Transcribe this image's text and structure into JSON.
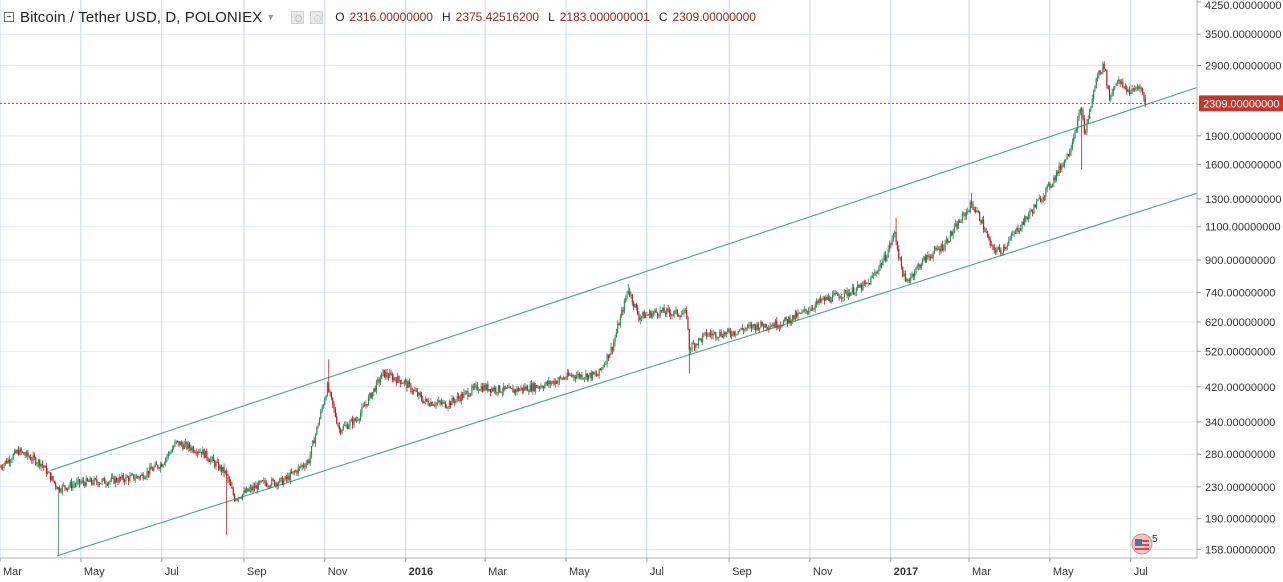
{
  "legend": {
    "symbol": "Bitcoin / Tether USD, D, POLONIEX",
    "o_label": "O",
    "o_value": "2316.00000000",
    "h_label": "H",
    "h_value": "2375.42516200",
    "l_label": "L",
    "l_value": "2183.000000001",
    "c_label": "C",
    "c_value": "2309.00000000"
  },
  "last_price_label": "2309.00000000",
  "badge_count": "5",
  "colors": {
    "up": "#2e8b57",
    "down": "#b22222",
    "channel": "#4aa58a",
    "grid": "#c8d7ec",
    "last_price": "#c0392b"
  },
  "chart_data": {
    "type": "candlestick",
    "title": "Bitcoin / Tether USD, D, POLONIEX",
    "scale": "log",
    "y_ticks": [
      "4250.00000000",
      "3500.00000000",
      "2900.00000000",
      "1900.00000000",
      "1600.00000000",
      "1300.00000000",
      "1100.00000000",
      "900.00000000",
      "740.00000000",
      "620.00000000",
      "520.00000000",
      "420.00000000",
      "340.00000000",
      "280.00000000",
      "230.00000000",
      "190.00000000",
      "158.00000000"
    ],
    "y_tick_values": [
      4250,
      3500,
      2900,
      1900,
      1600,
      1300,
      1100,
      900,
      740,
      620,
      520,
      420,
      340,
      280,
      230,
      190,
      158
    ],
    "x_ticks": [
      {
        "label": "Mar",
        "date": "2015-03-01",
        "bold": false
      },
      {
        "label": "May",
        "date": "2015-05-01",
        "bold": false
      },
      {
        "label": "Jul",
        "date": "2015-07-01",
        "bold": false
      },
      {
        "label": "Sep",
        "date": "2015-09-01",
        "bold": false
      },
      {
        "label": "Nov",
        "date": "2015-11-01",
        "bold": false
      },
      {
        "label": "2016",
        "date": "2016-01-01",
        "bold": true
      },
      {
        "label": "Mar",
        "date": "2016-03-01",
        "bold": false
      },
      {
        "label": "May",
        "date": "2016-05-01",
        "bold": false
      },
      {
        "label": "Jul",
        "date": "2016-07-01",
        "bold": false
      },
      {
        "label": "Sep",
        "date": "2016-09-01",
        "bold": false
      },
      {
        "label": "Nov",
        "date": "2016-11-01",
        "bold": false
      },
      {
        "label": "2017",
        "date": "2017-01-01",
        "bold": true
      },
      {
        "label": "Mar",
        "date": "2017-03-01",
        "bold": false
      },
      {
        "label": "May",
        "date": "2017-05-01",
        "bold": false
      },
      {
        "label": "Jul",
        "date": "2017-07-01",
        "bold": false
      }
    ],
    "x_range": [
      "2015-03-01",
      "2017-08-20"
    ],
    "y_range": [
      150,
      4300
    ],
    "last_close": 2309,
    "grid": true,
    "channel_lines": [
      {
        "points": [
          [
            "2015-04-08",
            254
          ],
          [
            "2017-08-20",
            2540
          ]
        ]
      },
      {
        "points": [
          [
            "2015-04-13",
            152
          ],
          [
            "2017-08-20",
            1345
          ]
        ]
      }
    ],
    "anchors": [
      [
        "2015-03-01",
        260
      ],
      [
        "2015-03-15",
        285
      ],
      [
        "2015-04-01",
        265
      ],
      [
        "2015-04-14",
        228
      ],
      [
        "2015-05-01",
        236
      ],
      [
        "2015-05-20",
        238
      ],
      [
        "2015-06-15",
        245
      ],
      [
        "2015-07-01",
        265
      ],
      [
        "2015-07-12",
        300
      ],
      [
        "2015-07-31",
        285
      ],
      [
        "2015-08-18",
        250
      ],
      [
        "2015-08-25",
        215
      ],
      [
        "2015-09-15",
        235
      ],
      [
        "2015-10-01",
        238
      ],
      [
        "2015-10-20",
        270
      ],
      [
        "2015-11-03",
        420
      ],
      [
        "2015-11-12",
        325
      ],
      [
        "2015-11-25",
        345
      ],
      [
        "2015-12-05",
        395
      ],
      [
        "2015-12-15",
        455
      ],
      [
        "2015-12-31",
        432
      ],
      [
        "2016-01-15",
        385
      ],
      [
        "2016-02-01",
        378
      ],
      [
        "2016-02-25",
        420
      ],
      [
        "2016-03-20",
        410
      ],
      [
        "2016-04-15",
        425
      ],
      [
        "2016-05-05",
        450
      ],
      [
        "2016-05-25",
        450
      ],
      [
        "2016-06-05",
        535
      ],
      [
        "2016-06-17",
        755
      ],
      [
        "2016-06-25",
        640
      ],
      [
        "2016-07-10",
        660
      ],
      [
        "2016-07-31",
        650
      ],
      [
        "2016-08-02",
        530
      ],
      [
        "2016-08-15",
        575
      ],
      [
        "2016-09-01",
        580
      ],
      [
        "2016-09-20",
        605
      ],
      [
        "2016-10-10",
        615
      ],
      [
        "2016-10-25",
        650
      ],
      [
        "2016-11-10",
        705
      ],
      [
        "2016-11-30",
        740
      ],
      [
        "2016-12-15",
        780
      ],
      [
        "2016-12-28",
        920
      ],
      [
        "2017-01-04",
        1060
      ],
      [
        "2017-01-08",
        890
      ],
      [
        "2017-01-12",
        785
      ],
      [
        "2017-01-25",
        895
      ],
      [
        "2017-02-10",
        985
      ],
      [
        "2017-03-03",
        1260
      ],
      [
        "2017-03-10",
        1150
      ],
      [
        "2017-03-18",
        965
      ],
      [
        "2017-03-25",
        950
      ],
      [
        "2017-04-15",
        1180
      ],
      [
        "2017-05-01",
        1410
      ],
      [
        "2017-05-15",
        1710
      ],
      [
        "2017-05-25",
        2260
      ],
      [
        "2017-05-27",
        1900
      ],
      [
        "2017-06-06",
        2750
      ],
      [
        "2017-06-11",
        2900
      ],
      [
        "2017-06-15",
        2380
      ],
      [
        "2017-06-20",
        2650
      ],
      [
        "2017-07-01",
        2470
      ],
      [
        "2017-07-08",
        2580
      ],
      [
        "2017-07-12",
        2309
      ]
    ],
    "spikes": [
      {
        "date": "2015-04-14",
        "low": 152
      },
      {
        "date": "2015-08-19",
        "low": 172
      },
      {
        "date": "2015-11-04",
        "high": 495
      },
      {
        "date": "2016-06-17",
        "high": 780
      },
      {
        "date": "2016-08-02",
        "low": 455
      },
      {
        "date": "2017-01-05",
        "high": 1160
      },
      {
        "date": "2017-03-03",
        "high": 1350
      },
      {
        "date": "2017-05-25",
        "low": 1550
      },
      {
        "date": "2017-06-11",
        "high": 2980
      }
    ]
  }
}
